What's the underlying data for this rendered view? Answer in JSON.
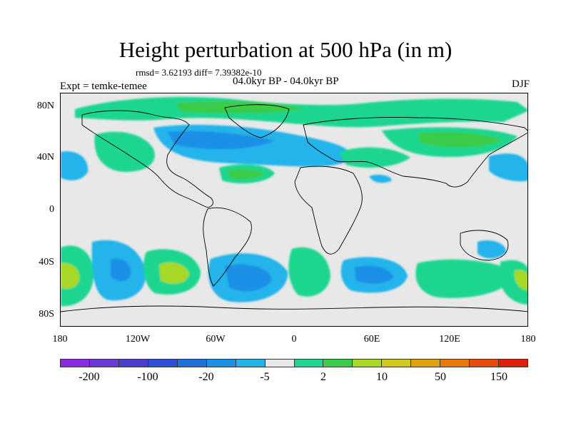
{
  "title": "Height perturbation at 500 hPa (in m)",
  "stats": "rmsd= 3.62193 diff= 7.39382e-10",
  "period": "04.0kyr BP - 04.0kyr BP",
  "experiment": "Expt = temke-temee",
  "season": "DJF",
  "map": {
    "y_ticks": [
      "80N",
      "40N",
      "0",
      "40S",
      "80S"
    ],
    "x_ticks": [
      "180",
      "120W",
      "60W",
      "0",
      "60E",
      "120E",
      "180"
    ],
    "projection": "cylindrical-equidistant"
  },
  "colorbar": {
    "colors": [
      "#8a2be2",
      "#6a3ad6",
      "#4b3fd0",
      "#2f4fd6",
      "#1f70d8",
      "#1a90e6",
      "#20b4ea",
      "#e8e8e8",
      "#1ed690",
      "#3acc4a",
      "#a8d827",
      "#d0c81a",
      "#e0a010",
      "#e8780a",
      "#e84c0a",
      "#e01e0a"
    ],
    "labels": [
      "-200",
      "-100",
      "-20",
      "-5",
      "2",
      "10",
      "50",
      "150"
    ]
  }
}
